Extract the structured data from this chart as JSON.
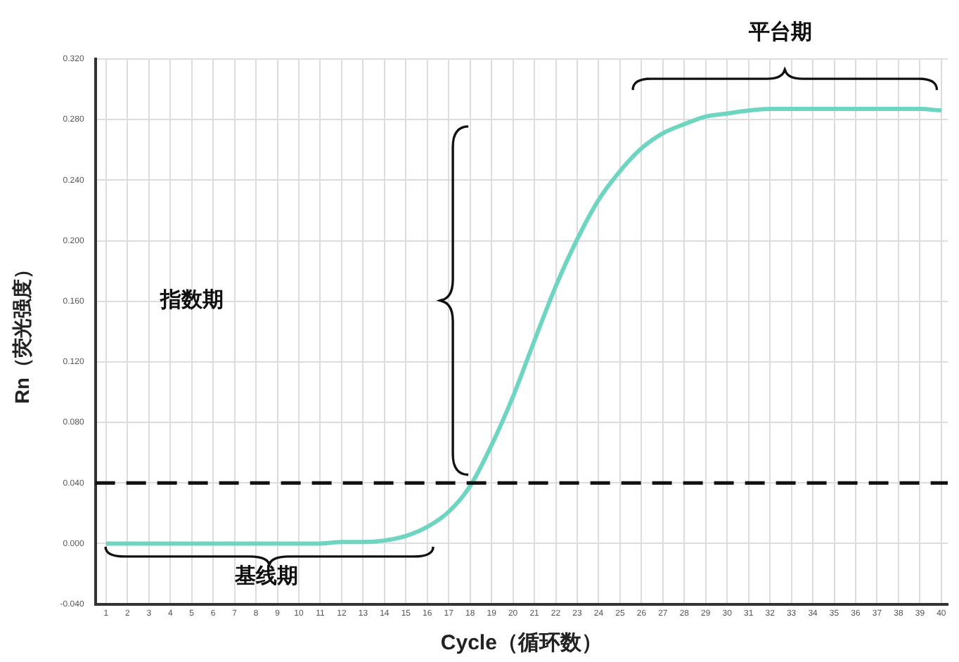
{
  "chart_data": {
    "type": "line",
    "xlabel": "Cycle（循环数）",
    "ylabel": "Rn（荧光强度）",
    "x": [
      1,
      2,
      3,
      4,
      5,
      6,
      7,
      8,
      9,
      10,
      11,
      12,
      13,
      14,
      15,
      16,
      17,
      18,
      19,
      20,
      21,
      22,
      23,
      24,
      25,
      26,
      27,
      28,
      29,
      30,
      31,
      32,
      33,
      34,
      35,
      36,
      37,
      38,
      39,
      40
    ],
    "series": [
      {
        "color": "#6dd5c0",
        "values": [
          0,
          0,
          0,
          0,
          0,
          0,
          0,
          0,
          0,
          0,
          0,
          0.001,
          0.001,
          0.002,
          0.005,
          0.011,
          0.021,
          0.038,
          0.065,
          0.097,
          0.134,
          0.17,
          0.201,
          0.227,
          0.246,
          0.261,
          0.271,
          0.277,
          0.282,
          0.284,
          0.286,
          0.287,
          0.287,
          0.287,
          0.287,
          0.287,
          0.287,
          0.287,
          0.287,
          0.286
        ]
      }
    ],
    "xlim": [
      0.5,
      40.3
    ],
    "xticks": [
      1,
      2,
      3,
      4,
      5,
      6,
      7,
      8,
      9,
      10,
      11,
      12,
      13,
      14,
      15,
      16,
      17,
      18,
      19,
      20,
      21,
      22,
      23,
      24,
      25,
      26,
      27,
      28,
      29,
      30,
      31,
      32,
      33,
      34,
      35,
      36,
      37,
      38,
      39,
      40
    ],
    "ylim": [
      -0.04,
      0.32
    ],
    "yticks": [
      {
        "value": -0.04,
        "label": "-0.040"
      },
      {
        "value": 0,
        "label": "0.000"
      },
      {
        "value": 0.04,
        "label": "0.040"
      },
      {
        "value": 0.08,
        "label": "0.080"
      },
      {
        "value": 0.12,
        "label": "0.120"
      },
      {
        "value": 0.16,
        "label": "0.160"
      },
      {
        "value": 0.2,
        "label": "0.200"
      },
      {
        "value": 0.24,
        "label": "0.240"
      },
      {
        "value": 0.28,
        "label": "0.280"
      },
      {
        "value": 0.32,
        "label": "0.320"
      }
    ],
    "ref_lines": [
      {
        "axis": "y",
        "value": 0.04,
        "color": "#111111",
        "line_style": "dashed"
      }
    ],
    "annotations": [
      "平台期",
      "指数期",
      "基线期"
    ],
    "grid": true,
    "legend": false,
    "marker": "none",
    "line_style": "solid"
  }
}
